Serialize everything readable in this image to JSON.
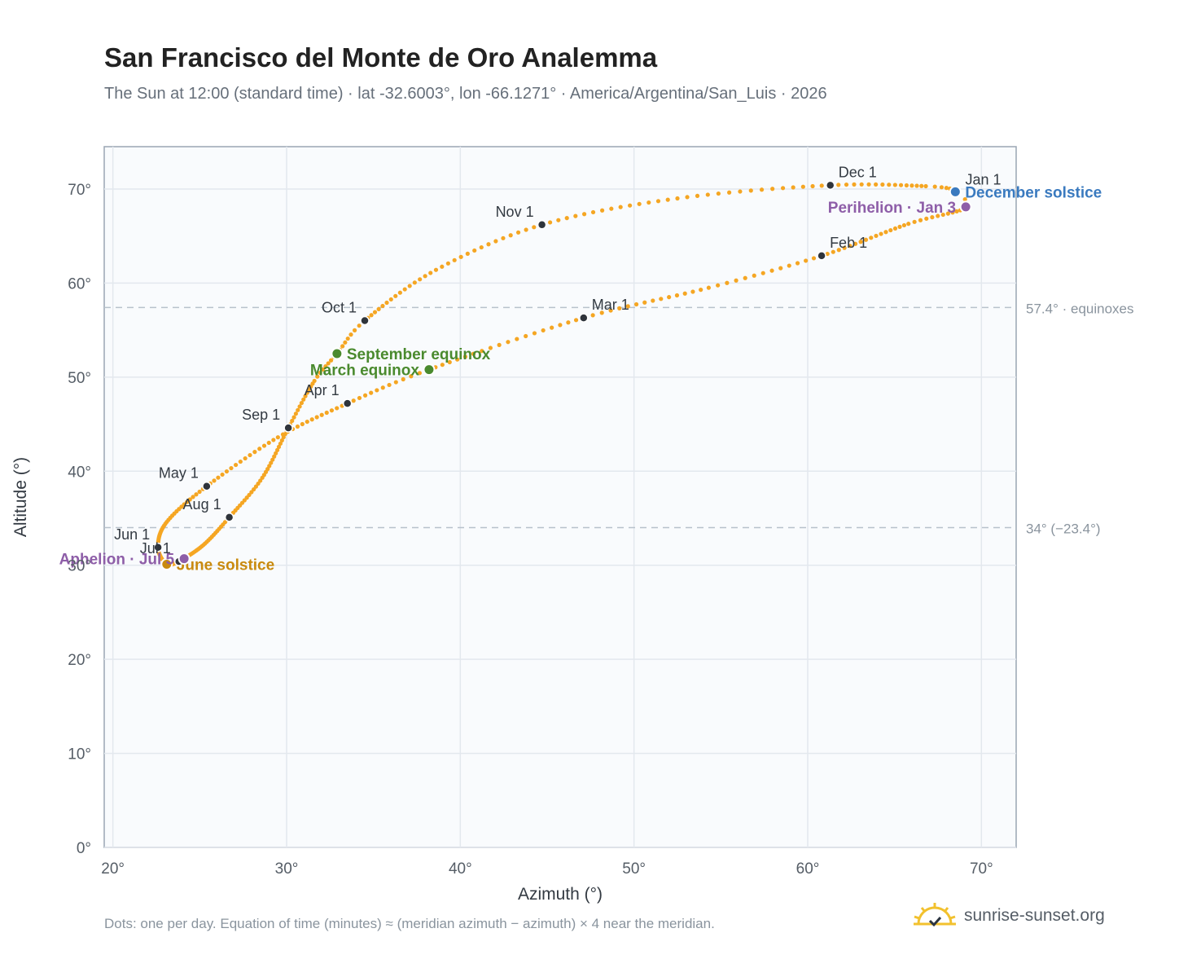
{
  "chart_data": {
    "type": "scatter",
    "title": "San Francisco del Monte de Oro Analemma",
    "subtitle": "The Sun at 12:00 (standard time) · lat -32.6003°, lon -66.1271° · America/Argentina/San_Luis · 2026",
    "xlabel": "Azimuth (°)",
    "ylabel": "Altitude (°)",
    "xlim": [
      19.5,
      72
    ],
    "ylim": [
      0,
      74.5
    ],
    "xticks": [
      20,
      30,
      40,
      50,
      60,
      70
    ],
    "xtick_labels": [
      "20°",
      "30°",
      "40°",
      "50°",
      "60°",
      "70°"
    ],
    "yticks": [
      0,
      10,
      20,
      30,
      40,
      50,
      60,
      70
    ],
    "ytick_labels": [
      "0°",
      "10°",
      "20°",
      "30°",
      "40°",
      "50°",
      "60°",
      "70°"
    ],
    "grid": true,
    "series_color": "#f5a623",
    "analemma_path": [
      {
        "doy": 1,
        "az": 68.6,
        "alt": 69.6
      },
      {
        "doy": 3,
        "az": 69.1,
        "alt": 68.0
      },
      {
        "doy": 15,
        "az": 65.8,
        "alt": 66.3
      },
      {
        "doy": 32,
        "az": 60.8,
        "alt": 62.9
      },
      {
        "doy": 45,
        "az": 54.3,
        "alt": 59.5
      },
      {
        "doy": 60,
        "az": 47.1,
        "alt": 56.3
      },
      {
        "doy": 79,
        "az": 38.2,
        "alt": 50.8
      },
      {
        "doy": 91,
        "az": 33.5,
        "alt": 47.2
      },
      {
        "doy": 105,
        "az": 29.5,
        "alt": 43.6
      },
      {
        "doy": 121,
        "az": 25.4,
        "alt": 38.4
      },
      {
        "doy": 136,
        "az": 23.1,
        "alt": 34.6
      },
      {
        "doy": 152,
        "az": 22.6,
        "alt": 31.9
      },
      {
        "doy": 172,
        "az": 23.1,
        "alt": 30.1
      },
      {
        "doy": 182,
        "az": 23.8,
        "alt": 30.4
      },
      {
        "doy": 186,
        "az": 24.1,
        "alt": 30.7
      },
      {
        "doy": 200,
        "az": 25.3,
        "alt": 32.3
      },
      {
        "doy": 213,
        "az": 26.7,
        "alt": 35.1
      },
      {
        "doy": 228,
        "az": 28.6,
        "alt": 39.3
      },
      {
        "doy": 244,
        "az": 30.1,
        "alt": 44.6
      },
      {
        "doy": 258,
        "az": 31.6,
        "alt": 49.6
      },
      {
        "doy": 266,
        "az": 32.9,
        "alt": 52.5
      },
      {
        "doy": 274,
        "az": 34.5,
        "alt": 56.0
      },
      {
        "doy": 290,
        "az": 38.6,
        "alt": 61.4
      },
      {
        "doy": 305,
        "az": 44.7,
        "alt": 66.2
      },
      {
        "doy": 320,
        "az": 52.5,
        "alt": 69.0
      },
      {
        "doy": 335,
        "az": 61.3,
        "alt": 70.4
      },
      {
        "doy": 350,
        "az": 66.8,
        "alt": 70.3
      },
      {
        "doy": 356,
        "az": 68.5,
        "alt": 69.9
      },
      {
        "doy": 365,
        "az": 68.6,
        "alt": 69.6
      }
    ],
    "month_markers": [
      {
        "label": "Jan 1",
        "az": 68.6,
        "alt": 69.6,
        "anchor": "start"
      },
      {
        "label": "Feb 1",
        "az": 60.8,
        "alt": 62.9,
        "anchor": "start"
      },
      {
        "label": "Mar 1",
        "az": 47.1,
        "alt": 56.3,
        "anchor": "start"
      },
      {
        "label": "Apr 1",
        "az": 33.5,
        "alt": 47.2,
        "anchor": "end"
      },
      {
        "label": "May 1",
        "az": 25.4,
        "alt": 38.4,
        "anchor": "end"
      },
      {
        "label": "Jun 1",
        "az": 22.6,
        "alt": 31.9,
        "anchor": "end"
      },
      {
        "label": "Jul 1",
        "az": 23.8,
        "alt": 30.4,
        "anchor": "end"
      },
      {
        "label": "Aug 1",
        "az": 26.7,
        "alt": 35.1,
        "anchor": "end"
      },
      {
        "label": "Sep 1",
        "az": 30.1,
        "alt": 44.6,
        "anchor": "end"
      },
      {
        "label": "Oct 1",
        "az": 34.5,
        "alt": 56.0,
        "anchor": "end"
      },
      {
        "label": "Nov 1",
        "az": 44.7,
        "alt": 66.2,
        "anchor": "end"
      },
      {
        "label": "Dec 1",
        "az": 61.3,
        "alt": 70.4,
        "anchor": "start"
      }
    ],
    "events": [
      {
        "label": "December solstice",
        "az": 68.5,
        "alt": 69.7,
        "color": "#3a7abf",
        "anchor": "start"
      },
      {
        "label": "Perihelion · Jan 3",
        "az": 69.1,
        "alt": 68.1,
        "color": "#8e5ea8",
        "anchor": "end"
      },
      {
        "label": "March equinox",
        "az": 38.2,
        "alt": 50.8,
        "color": "#4a8a2e",
        "anchor": "end"
      },
      {
        "label": "September equinox",
        "az": 32.9,
        "alt": 52.5,
        "color": "#4a8a2e",
        "anchor": "start"
      },
      {
        "label": "June solstice",
        "az": 23.1,
        "alt": 30.1,
        "color": "#c98a0e",
        "anchor": "start"
      },
      {
        "label": "Aphelion · Jul 5",
        "az": 24.1,
        "alt": 30.7,
        "color": "#8e5ea8",
        "anchor": "end"
      }
    ],
    "reference_lines": [
      {
        "alt": 57.4,
        "label": "57.4° · equinoxes"
      },
      {
        "alt": 34.0,
        "label": "34° (−23.4°)"
      }
    ]
  },
  "footnote": "Dots: one per day. Equation of time (minutes) ≈ (meridian azimuth − azimuth) × 4 near the meridian.",
  "brand": {
    "name": "sunrise-sunset.org",
    "icon": "sun-logo-icon"
  }
}
